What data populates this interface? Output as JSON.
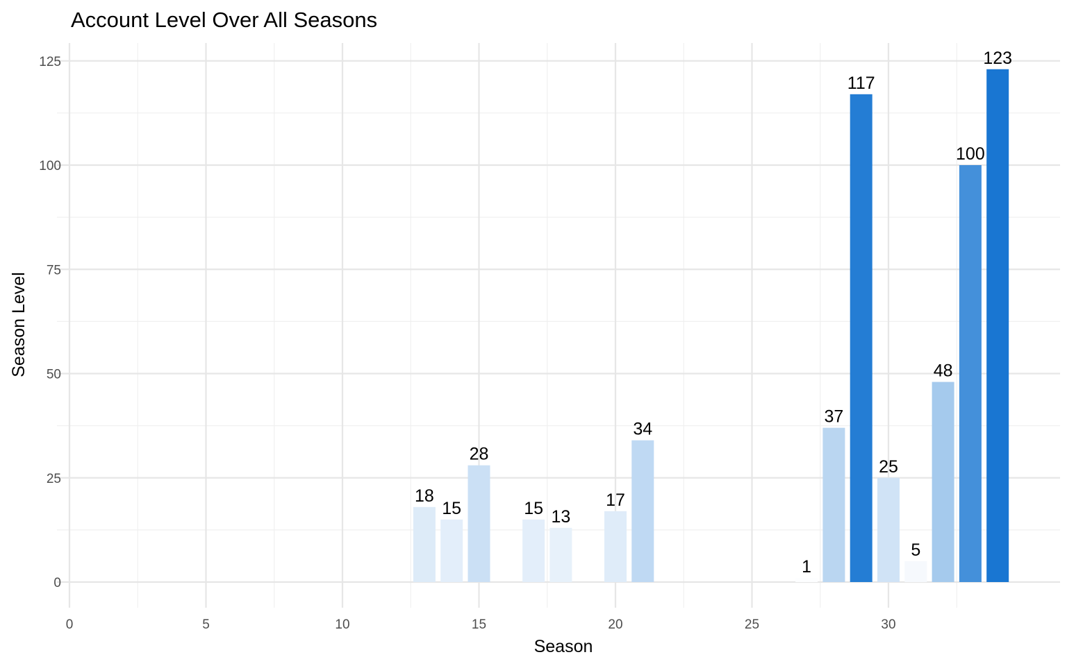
{
  "chart_data": {
    "type": "bar",
    "title": "Account Level Over All Seasons",
    "xlabel": "Season",
    "ylabel": "Season Level",
    "xlim": [
      0,
      35
    ],
    "ylim": [
      0,
      125
    ],
    "x_ticks": [
      0,
      5,
      10,
      15,
      20,
      25,
      30
    ],
    "y_ticks": [
      0,
      25,
      50,
      75,
      100,
      125
    ],
    "grid": true,
    "legend": "none",
    "color_scale": {
      "low": "#ffffff",
      "high": "#1976d2"
    },
    "x": [
      13,
      14,
      15,
      17,
      18,
      20,
      21,
      27,
      28,
      29,
      30,
      31,
      32,
      33,
      34
    ],
    "values": [
      18,
      15,
      28,
      15,
      13,
      17,
      34,
      1,
      37,
      117,
      25,
      5,
      48,
      100,
      123
    ]
  }
}
